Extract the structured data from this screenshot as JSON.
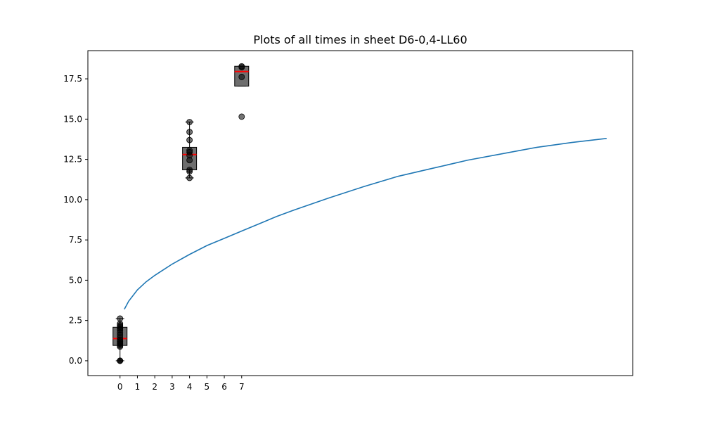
{
  "chart_data": {
    "type": "box",
    "title": "Plots of all times in sheet D6-0,4-LL60",
    "xlabel": "",
    "ylabel": "",
    "xlim": [
      -1.85,
      29.5
    ],
    "ylim": [
      -0.92,
      19.25
    ],
    "x_ticks": [
      0,
      1,
      2,
      3,
      4,
      5,
      6,
      7
    ],
    "y_ticks": [
      0.0,
      2.5,
      5.0,
      7.5,
      10.0,
      12.5,
      15.0,
      17.5
    ],
    "y_tick_labels": [
      "0.0",
      "2.5",
      "5.0",
      "7.5",
      "10.0",
      "12.5",
      "15.0",
      "17.5"
    ],
    "grid": false,
    "boxes": [
      {
        "x": 0,
        "q1": 0.95,
        "median": 1.38,
        "q3": 2.08,
        "whisker_low": 0.0,
        "whisker_high": 2.62,
        "points": [
          0.0,
          0.0,
          0.0,
          0.88,
          0.95,
          1.05,
          1.1,
          1.2,
          1.3,
          1.45,
          1.6,
          1.75,
          1.9,
          2.0,
          2.1,
          2.2,
          2.3,
          2.62
        ]
      },
      {
        "x": 4,
        "q1": 11.85,
        "median": 12.8,
        "q3": 13.25,
        "whisker_low": 11.35,
        "whisker_high": 14.82,
        "points": [
          11.35,
          11.75,
          11.85,
          12.45,
          12.75,
          12.95,
          13.05,
          13.7,
          14.2,
          14.82
        ]
      },
      {
        "x": 7,
        "q1": 17.05,
        "median": 17.95,
        "q3": 18.28,
        "whisker_low": 17.05,
        "whisker_high": 18.28,
        "points": [
          15.15,
          17.62,
          18.22,
          18.28
        ]
      }
    ],
    "box_color": "#6e6e6e",
    "median_color": "#ff0000",
    "line_color": "#1f77b4",
    "series": [
      {
        "type": "line",
        "x": [
          0.25,
          0.5,
          1,
          1.5,
          2,
          3,
          4,
          5,
          6,
          7,
          8,
          9,
          10,
          12,
          14,
          16,
          18,
          20,
          22,
          24,
          26,
          28
        ],
        "y": [
          3.2,
          3.7,
          4.4,
          4.9,
          5.3,
          6.0,
          6.6,
          7.15,
          7.6,
          8.05,
          8.5,
          8.95,
          9.35,
          10.1,
          10.8,
          11.45,
          11.95,
          12.45,
          12.85,
          13.25,
          13.55,
          13.8
        ]
      }
    ]
  }
}
